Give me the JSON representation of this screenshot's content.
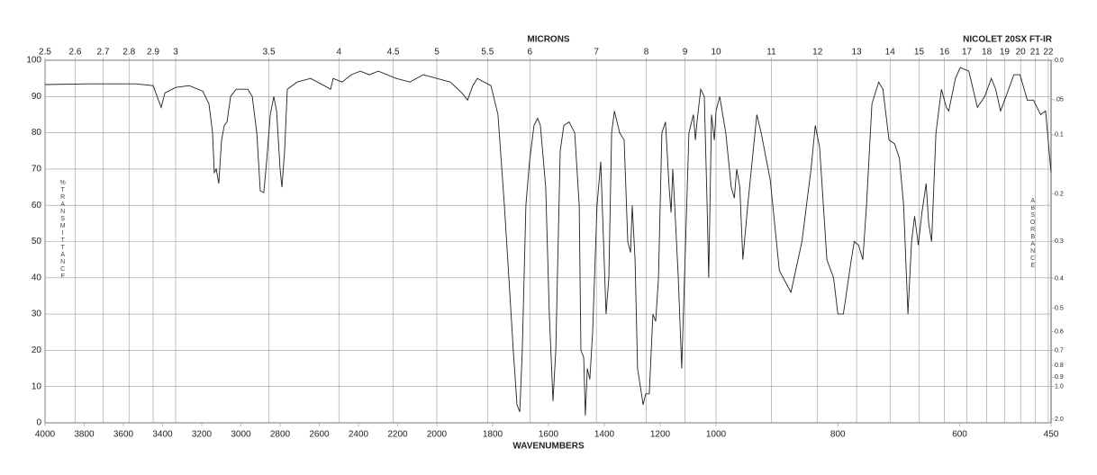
{
  "chart_data": {
    "type": "line",
    "title": "NICOLET 20SX FT-IR",
    "xlabel": "WAVENUMBERS",
    "x2label": "MICRONS",
    "ylabel": "%TRANSMITTANCE",
    "y2label": "ABSORBANCE",
    "xlim": [
      4000,
      450
    ],
    "xbreaks": [
      2000,
      1000
    ],
    "xticks": [
      4000,
      3800,
      3600,
      3400,
      3200,
      3000,
      2800,
      2600,
      2400,
      2200,
      2000,
      1800,
      1600,
      1400,
      1200,
      1000,
      800,
      600,
      450
    ],
    "x2ticks": [
      2.5,
      2.6,
      2.7,
      2.8,
      2.9,
      3,
      3.5,
      4,
      4.5,
      5,
      5.5,
      6,
      7,
      8,
      9,
      10,
      11,
      12,
      13,
      14,
      15,
      16,
      17,
      18,
      19,
      20,
      21,
      22
    ],
    "ylim": [
      0,
      100
    ],
    "yticks": [
      0,
      10,
      20,
      30,
      40,
      50,
      60,
      70,
      80,
      90,
      100
    ],
    "y2ticks": [
      {
        "value": 0,
        "label": "0.0"
      },
      {
        "value": 0.05,
        "label": ".05"
      },
      0.1,
      0.2,
      0.3,
      0.4,
      0.5,
      0.6,
      0.7,
      0.8,
      0.9,
      {
        "value": 1,
        "label": "1.0"
      },
      {
        "value": 2,
        "label": "2.0"
      }
    ],
    "grid": true,
    "color": "#222222",
    "x": [
      4000,
      3770,
      3540,
      3448,
      3421,
      3407,
      3388,
      3333,
      3264,
      3195,
      3163,
      3145,
      3136,
      3126,
      3113,
      3099,
      3085,
      3071,
      3053,
      3025,
      2965,
      2942,
      2919,
      2901,
      2883,
      2869,
      2850,
      2832,
      2818,
      2800,
      2791,
      2777,
      2763,
      2713,
      2644,
      2575,
      2542,
      2529,
      2483,
      2437,
      2391,
      2345,
      2299,
      2207,
      2138,
      2069,
      2000,
      1952,
      1910,
      1890,
      1871,
      1855,
      1806,
      1781,
      1758,
      1742,
      1726,
      1713,
      1703,
      1694,
      1681,
      1668,
      1652,
      1639,
      1629,
      1610,
      1597,
      1584,
      1574,
      1558,
      1545,
      1526,
      1506,
      1490,
      1484,
      1474,
      1468,
      1461,
      1452,
      1442,
      1426,
      1413,
      1403,
      1394,
      1384,
      1374,
      1364,
      1345,
      1329,
      1316,
      1306,
      1300,
      1290,
      1281,
      1271,
      1261,
      1252,
      1239,
      1226,
      1216,
      1206,
      1194,
      1181,
      1168,
      1161,
      1155,
      1148,
      1135,
      1123,
      1113,
      1097,
      1081,
      1074,
      1068,
      1055,
      1042,
      1032,
      1026,
      1016,
      1006,
      1000,
      994,
      984,
      975,
      970,
      966,
      961,
      956,
      948,
      933,
      926,
      911,
      896,
      877,
      859,
      844,
      837,
      830,
      818,
      807,
      800,
      791,
      778,
      773,
      766,
      759,
      753,
      744,
      733,
      726,
      716,
      707,
      699,
      692,
      685,
      679,
      674,
      668,
      662,
      655,
      651,
      646,
      639,
      630,
      622,
      618,
      607,
      599,
      585,
      571,
      559,
      548,
      541,
      533,
      524,
      511,
      501,
      489,
      479,
      467,
      459,
      450
    ],
    "values": [
      93.3,
      93.5,
      93.5,
      93,
      89,
      87,
      91,
      92.5,
      93,
      91.5,
      88,
      80,
      69,
      70,
      66,
      78,
      82,
      83,
      90,
      92,
      92,
      90,
      80,
      64,
      63.5,
      72,
      85,
      90,
      86,
      70,
      65,
      75,
      92,
      94,
      95,
      93,
      92,
      95,
      94,
      96,
      97,
      96,
      97,
      95,
      94,
      96,
      95,
      94,
      91,
      89,
      93,
      95,
      93,
      85,
      60,
      40,
      20,
      5,
      3,
      20,
      60,
      72,
      82,
      84,
      82,
      65,
      30,
      6,
      20,
      75,
      82,
      83,
      80,
      60,
      20,
      18,
      2,
      15,
      12,
      25,
      60,
      72,
      50,
      30,
      40,
      80,
      86,
      80,
      78,
      50,
      47,
      60,
      45,
      15,
      10,
      5,
      8,
      8,
      30,
      28,
      40,
      80,
      83,
      65,
      58,
      70,
      60,
      40,
      15,
      40,
      80,
      85,
      78,
      83,
      92,
      90,
      60,
      40,
      85,
      78,
      86,
      90,
      80,
      65,
      62,
      70,
      65,
      45,
      60,
      85,
      80,
      67,
      42,
      36,
      50,
      70,
      82,
      76,
      45,
      40,
      30,
      30,
      45,
      50,
      49,
      45,
      60,
      88,
      94,
      92,
      78,
      77,
      73,
      60,
      30,
      50,
      57,
      49,
      58,
      66,
      55,
      50,
      80,
      92,
      87,
      86,
      95,
      98,
      97,
      87,
      90,
      95,
      92,
      86,
      90,
      96,
      96,
      89,
      89,
      85,
      86,
      69
    ]
  }
}
